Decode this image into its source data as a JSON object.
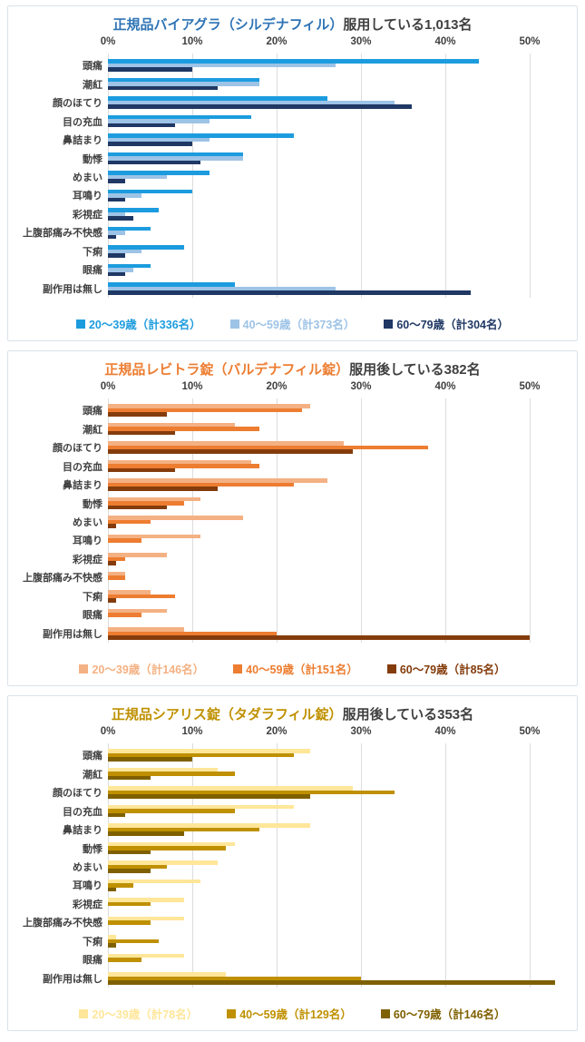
{
  "page": {
    "background": "#ffffff",
    "grid_color": "#dcdcdc",
    "text_color": "#404040"
  },
  "chart_data": [
    {
      "type": "bar",
      "orientation": "horizontal",
      "title_product": "正規品バイアグラ（シルデナフィル）",
      "title_suffix": "服用している1,013名",
      "title_product_color": "#2E74B5",
      "x_tick_labels": [
        "0%",
        "10%",
        "20%",
        "30%",
        "40%",
        "50%"
      ],
      "x_axis_range": [
        0,
        55
      ],
      "x_gridline_step_percent": 10,
      "legend_position": "bottom",
      "categories": [
        "頭痛",
        "潮紅",
        "顔のほてり",
        "目の充血",
        "鼻詰まり",
        "動悸",
        "めまい",
        "耳鳴り",
        "彩視症",
        "上腹部痛み不快感",
        "下痢",
        "眼痛",
        "副作用は無し"
      ],
      "series": [
        {
          "name": "20～39歳（計336名）",
          "color": "#1C9CDE",
          "values": [
            44,
            18,
            26,
            17,
            22,
            16,
            12,
            10,
            6,
            5,
            9,
            5,
            15
          ]
        },
        {
          "name": "40～59歳（計373名）",
          "color": "#9DC3E6",
          "values": [
            27,
            18,
            34,
            12,
            12,
            16,
            7,
            4,
            2,
            2,
            4,
            3,
            27
          ]
        },
        {
          "name": "60～79歳（計304名）",
          "color": "#1F3864",
          "values": [
            10,
            13,
            36,
            8,
            10,
            11,
            2,
            2,
            3,
            1,
            2,
            2,
            43
          ]
        }
      ]
    },
    {
      "type": "bar",
      "orientation": "horizontal",
      "title_product": "正規品レビトラ錠（バルデナフィル錠）",
      "title_suffix": "服用後している382名",
      "title_product_color": "#ED7D31",
      "x_tick_labels": [
        "0%",
        "10%",
        "20%",
        "30%",
        "40%",
        "50%"
      ],
      "x_axis_range": [
        0,
        55
      ],
      "x_gridline_step_percent": 10,
      "legend_position": "bottom",
      "categories": [
        "頭痛",
        "潮紅",
        "顔のほてり",
        "目の充血",
        "鼻詰まり",
        "動悸",
        "めまい",
        "耳鳴り",
        "彩視症",
        "上腹部痛み不快感",
        "下痢",
        "眼痛",
        "副作用は無し"
      ],
      "series": [
        {
          "name": "20～39歳（計146名）",
          "color": "#F4B183",
          "values": [
            24,
            15,
            28,
            17,
            26,
            11,
            16,
            11,
            7,
            2,
            5,
            7,
            9
          ]
        },
        {
          "name": "40～59歳（計151名）",
          "color": "#ED7D31",
          "values": [
            23,
            18,
            38,
            18,
            22,
            9,
            5,
            4,
            2,
            2,
            8,
            4,
            20
          ]
        },
        {
          "name": "60～79歳（計85名）",
          "color": "#843C0C",
          "values": [
            7,
            8,
            29,
            8,
            13,
            7,
            1,
            0,
            1,
            0,
            1,
            0,
            50
          ]
        }
      ]
    },
    {
      "type": "bar",
      "orientation": "horizontal",
      "title_product": "正規品シアリス錠（タダラフィル錠）",
      "title_suffix": "服用後している353名",
      "title_product_color": "#BF9000",
      "x_tick_labels": [
        "0%",
        "10%",
        "20%",
        "30%",
        "40%",
        "50%"
      ],
      "x_axis_range": [
        0,
        55
      ],
      "x_gridline_step_percent": 10,
      "legend_position": "bottom",
      "categories": [
        "頭痛",
        "潮紅",
        "顔のほてり",
        "目の充血",
        "鼻詰まり",
        "動悸",
        "めまい",
        "耳鳴り",
        "彩視症",
        "上腹部痛み不快感",
        "下痢",
        "眼痛",
        "副作用は無し"
      ],
      "series": [
        {
          "name": "20～39歳（計78名）",
          "color": "#FFE699",
          "values": [
            24,
            13,
            29,
            22,
            24,
            15,
            13,
            11,
            9,
            9,
            1,
            9,
            14
          ]
        },
        {
          "name": "40～59歳（計129名）",
          "color": "#BF9000",
          "values": [
            22,
            15,
            34,
            15,
            18,
            14,
            7,
            3,
            5,
            5,
            6,
            4,
            30
          ]
        },
        {
          "name": "60～79歳（計146名）",
          "color": "#7F6000",
          "values": [
            10,
            5,
            24,
            2,
            9,
            5,
            5,
            1,
            0,
            0,
            1,
            0,
            53
          ]
        }
      ]
    }
  ]
}
